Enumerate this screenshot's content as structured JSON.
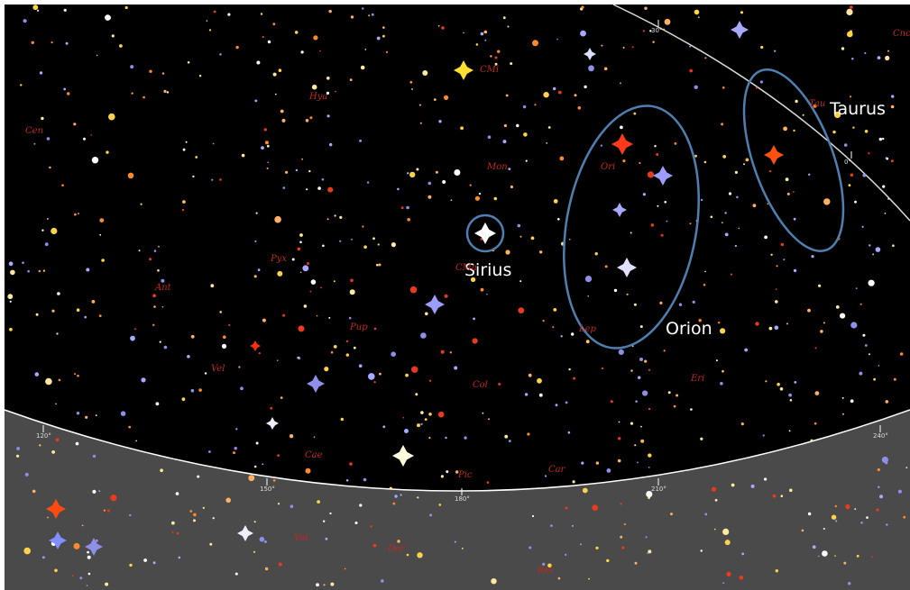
{
  "annotations": [
    "Sirius",
    "Orion",
    "Taurus"
  ],
  "constellations": [
    "Hya",
    "CMi",
    "Mon",
    "Ori",
    "Tau",
    "Cnc",
    "Pyx",
    "Ant",
    "CMa",
    "Pup",
    "Vel",
    "Col",
    "Lep",
    "Eri",
    "Car",
    "Pic",
    "Cae",
    "Cen",
    "Vol",
    "Dor",
    "Ret"
  ],
  "azimuth_labels": [
    "120°",
    "150°",
    "180°",
    "210°",
    "240°",
    "30°",
    "0°"
  ]
}
